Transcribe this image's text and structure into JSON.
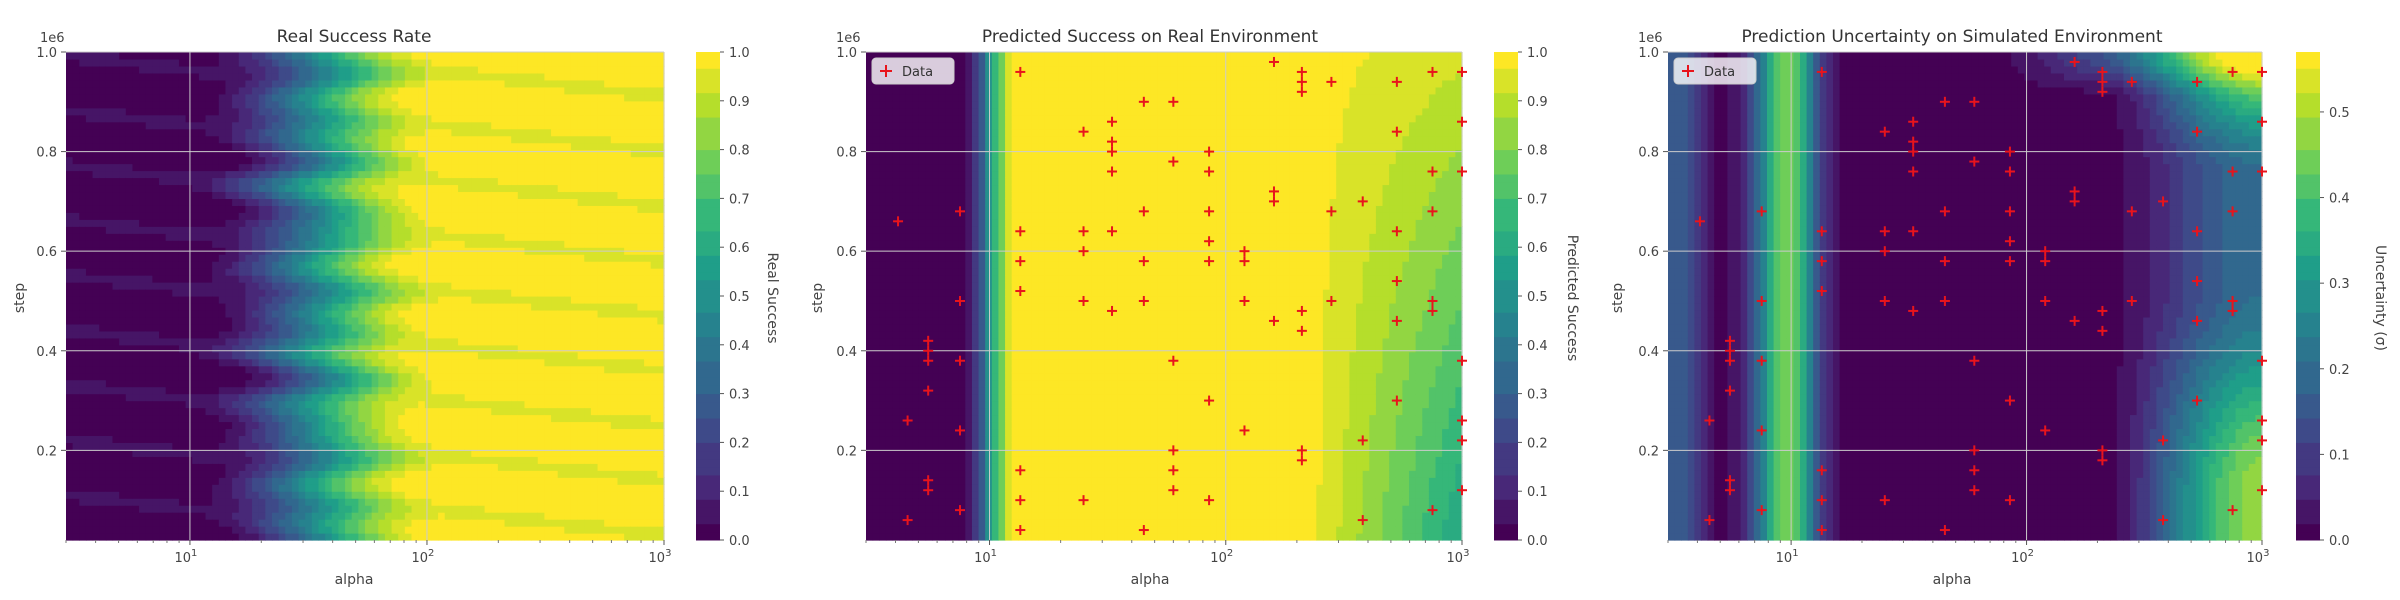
{
  "chart_data": [
    {
      "type": "heatmap",
      "title": "Real Success Rate",
      "xlabel": "alpha",
      "ylabel": "step",
      "xscale": "log",
      "xlim": [
        3,
        1000
      ],
      "ylim": [
        20000,
        1000000
      ],
      "y_scale_factor": "1e6",
      "x_ticks": [
        {
          "value": 10,
          "base": "10",
          "exp": "1"
        },
        {
          "value": 100,
          "base": "10",
          "exp": "2"
        },
        {
          "value": 1000,
          "base": "10",
          "exp": "3"
        }
      ],
      "y_ticks": [
        {
          "value": 200000,
          "label": "0.2"
        },
        {
          "value": 400000,
          "label": "0.4"
        },
        {
          "value": 600000,
          "label": "0.6"
        },
        {
          "value": 800000,
          "label": "0.8"
        },
        {
          "value": 1000000,
          "label": "1.0"
        }
      ],
      "grid": true,
      "colormap": "viridis",
      "colorbar": {
        "label": "Real Success",
        "range": [
          0,
          1
        ],
        "ticks": [
          "0.0",
          "0.1",
          "0.2",
          "0.3",
          "0.4",
          "0.5",
          "0.6",
          "0.7",
          "0.8",
          "0.9",
          "1.0"
        ]
      },
      "surface": "success rises from ~0 at alpha<=10 to ~0.9-1.0 for alpha>=100 at all steps",
      "legend": null
    },
    {
      "type": "heatmap",
      "title": "Predicted Success on Real Environment",
      "xlabel": "alpha",
      "ylabel": "step",
      "xscale": "log",
      "xlim": [
        3,
        1000
      ],
      "ylim": [
        20000,
        1000000
      ],
      "y_scale_factor": "1e6",
      "x_ticks": [
        {
          "value": 10,
          "base": "10",
          "exp": "1"
        },
        {
          "value": 100,
          "base": "10",
          "exp": "2"
        },
        {
          "value": 1000,
          "base": "10",
          "exp": "3"
        }
      ],
      "y_ticks": [
        {
          "value": 200000,
          "label": "0.2"
        },
        {
          "value": 400000,
          "label": "0.4"
        },
        {
          "value": 600000,
          "label": "0.6"
        },
        {
          "value": 800000,
          "label": "0.8"
        },
        {
          "value": 1000000,
          "label": "1.0"
        }
      ],
      "grid": true,
      "colormap": "viridis",
      "colorbar": {
        "label": "Predicted Success",
        "range": [
          0,
          1
        ],
        "ticks": [
          "0.0",
          "0.1",
          "0.2",
          "0.3",
          "0.4",
          "0.5",
          "0.6",
          "0.7",
          "0.8",
          "0.9",
          "1.0"
        ]
      },
      "surface": "~0 for alpha<8, ~1.0 for alpha 15-400, decreasing to ~0.6 near alpha=1000 at low step",
      "legend": {
        "label": "Data",
        "placement": "top-left",
        "marker": "+",
        "color": "#e8141c"
      }
    },
    {
      "type": "heatmap",
      "title": "Prediction Uncertainty on Simulated Environment",
      "xlabel": "alpha",
      "ylabel": "step",
      "xscale": "log",
      "xlim": [
        3,
        1000
      ],
      "ylim": [
        20000,
        1000000
      ],
      "y_scale_factor": "1e6",
      "x_ticks": [
        {
          "value": 10,
          "base": "10",
          "exp": "1"
        },
        {
          "value": 100,
          "base": "10",
          "exp": "2"
        },
        {
          "value": 1000,
          "base": "10",
          "exp": "3"
        }
      ],
      "y_ticks": [
        {
          "value": 200000,
          "label": "0.2"
        },
        {
          "value": 400000,
          "label": "0.4"
        },
        {
          "value": 600000,
          "label": "0.6"
        },
        {
          "value": 800000,
          "label": "0.8"
        },
        {
          "value": 1000000,
          "label": "1.0"
        }
      ],
      "grid": true,
      "colormap": "viridis",
      "colorbar": {
        "label": "Uncertainty (σ)",
        "range": [
          0,
          0.57
        ],
        "ticks": [
          "0.0",
          "0.1",
          "0.2",
          "0.3",
          "0.4",
          "0.5"
        ]
      },
      "surface": "low (~0) across most of the domain, rising to ~0.5 at the left edge (alpha~10) and lower-right/top-right corners",
      "legend": {
        "label": "Data",
        "placement": "top-left",
        "marker": "+",
        "color": "#e8141c"
      }
    }
  ],
  "data_points": [
    [
      4.1,
      660000
    ],
    [
      4.5,
      260000
    ],
    [
      4.5,
      60000
    ],
    [
      5.5,
      420000
    ],
    [
      5.5,
      400000
    ],
    [
      5.5,
      380000
    ],
    [
      5.5,
      320000
    ],
    [
      5.5,
      140000
    ],
    [
      5.5,
      120000
    ],
    [
      7.5,
      680000
    ],
    [
      7.5,
      500000
    ],
    [
      7.5,
      380000
    ],
    [
      7.5,
      240000
    ],
    [
      7.5,
      80000
    ],
    [
      13.5,
      640000
    ],
    [
      13.5,
      580000
    ],
    [
      13.5,
      520000
    ],
    [
      13.5,
      160000
    ],
    [
      13.5,
      100000
    ],
    [
      13.5,
      40000
    ],
    [
      13.5,
      960000
    ],
    [
      25,
      840000
    ],
    [
      25,
      640000
    ],
    [
      25,
      600000
    ],
    [
      25,
      500000
    ],
    [
      25,
      100000
    ],
    [
      33,
      860000
    ],
    [
      33,
      820000
    ],
    [
      33,
      800000
    ],
    [
      33,
      760000
    ],
    [
      33,
      640000
    ],
    [
      33,
      480000
    ],
    [
      45,
      900000
    ],
    [
      45,
      680000
    ],
    [
      45,
      580000
    ],
    [
      45,
      500000
    ],
    [
      45,
      40000
    ],
    [
      60,
      900000
    ],
    [
      60,
      780000
    ],
    [
      60,
      380000
    ],
    [
      60,
      200000
    ],
    [
      60,
      160000
    ],
    [
      60,
      120000
    ],
    [
      85,
      800000
    ],
    [
      85,
      760000
    ],
    [
      85,
      680000
    ],
    [
      85,
      620000
    ],
    [
      85,
      580000
    ],
    [
      85,
      300000
    ],
    [
      85,
      100000
    ],
    [
      120,
      600000
    ],
    [
      120,
      580000
    ],
    [
      120,
      500000
    ],
    [
      120,
      240000
    ],
    [
      160,
      980000
    ],
    [
      160,
      720000
    ],
    [
      160,
      700000
    ],
    [
      160,
      460000
    ],
    [
      210,
      960000
    ],
    [
      210,
      940000
    ],
    [
      210,
      920000
    ],
    [
      210,
      480000
    ],
    [
      210,
      440000
    ],
    [
      210,
      200000
    ],
    [
      210,
      180000
    ],
    [
      280,
      940000
    ],
    [
      280,
      680000
    ],
    [
      280,
      500000
    ],
    [
      380,
      700000
    ],
    [
      380,
      220000
    ],
    [
      380,
      60000
    ],
    [
      530,
      940000
    ],
    [
      530,
      840000
    ],
    [
      530,
      640000
    ],
    [
      530,
      540000
    ],
    [
      530,
      460000
    ],
    [
      530,
      300000
    ],
    [
      750,
      960000
    ],
    [
      750,
      760000
    ],
    [
      750,
      680000
    ],
    [
      750,
      500000
    ],
    [
      750,
      480000
    ],
    [
      750,
      80000
    ],
    [
      1000,
      960000
    ],
    [
      1000,
      860000
    ],
    [
      1000,
      760000
    ],
    [
      1000,
      380000
    ],
    [
      1000,
      260000
    ],
    [
      1000,
      220000
    ],
    [
      1000,
      120000
    ]
  ]
}
